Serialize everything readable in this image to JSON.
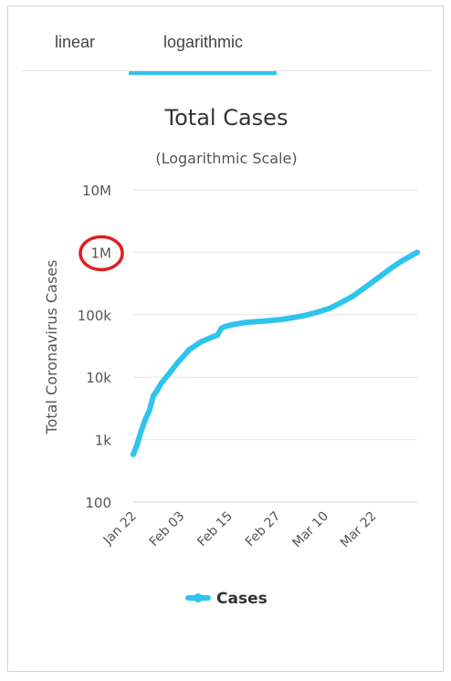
{
  "tabs": [
    {
      "label": "linear",
      "active": false
    },
    {
      "label": "logarithmic",
      "active": true
    }
  ],
  "chart_data": {
    "type": "line",
    "title": "Total Cases",
    "subtitle": "(Logarithmic Scale)",
    "ylabel": "Total Coronavirus Cases",
    "xlabel": "",
    "yscale": "log",
    "ylim": [
      100,
      10000000
    ],
    "y_ticks": [
      100,
      1000,
      10000,
      100000,
      1000000,
      10000000
    ],
    "y_tick_labels": [
      "100",
      "1k",
      "10k",
      "100k",
      "1M",
      "10M"
    ],
    "x_tick_labels": [
      "Jan 22",
      "Feb 03",
      "Feb 15",
      "Feb 27",
      "Mar 10",
      "Mar 22"
    ],
    "x_range": [
      "2020-01-22",
      "2020-04-02"
    ],
    "grid": true,
    "legend": "bottom-center",
    "highlight": {
      "tick_label": "1M",
      "color": "#e02020"
    },
    "series": [
      {
        "name": "Cases",
        "color": "#2ec4ee",
        "x": [
          "2020-01-22",
          "2020-01-23",
          "2020-01-24",
          "2020-01-25",
          "2020-01-26",
          "2020-01-27",
          "2020-01-28",
          "2020-01-29",
          "2020-01-31",
          "2020-02-02",
          "2020-02-05",
          "2020-02-08",
          "2020-02-11",
          "2020-02-12",
          "2020-02-13",
          "2020-02-14",
          "2020-02-16",
          "2020-02-19",
          "2020-02-22",
          "2020-02-25",
          "2020-02-28",
          "2020-03-02",
          "2020-03-05",
          "2020-03-08",
          "2020-03-11",
          "2020-03-14",
          "2020-03-17",
          "2020-03-20",
          "2020-03-23",
          "2020-03-26",
          "2020-03-29",
          "2020-04-02"
        ],
        "values": [
          580,
          850,
          1400,
          2100,
          2900,
          5000,
          6200,
          8000,
          11500,
          16800,
          27600,
          37100,
          44800,
          46700,
          60300,
          65000,
          70000,
          75000,
          78000,
          80500,
          84000,
          90000,
          98000,
          110000,
          126000,
          157000,
          200000,
          275000,
          380000,
          530000,
          720000,
          1000000
        ]
      }
    ]
  }
}
